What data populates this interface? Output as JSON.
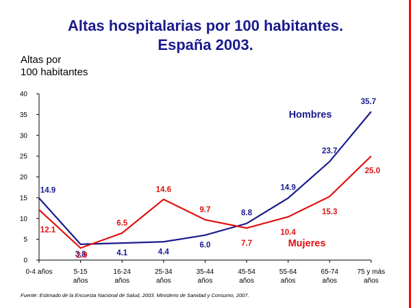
{
  "title_line1": "Altas hospitalarias por 100 habitantes.",
  "title_line2": "España 2003.",
  "ylabel_line1": "Altas por",
  "ylabel_line2": "100 habitantes",
  "source": "Fuente: Estimado de la Encuesta Nacional de Salud, 2003. Ministerio de Sanidad y Consumo, 2007.",
  "chart_data": {
    "type": "line",
    "categories": [
      [
        "0-4 años"
      ],
      [
        "5-15",
        "años"
      ],
      [
        "16-24",
        "años"
      ],
      [
        "25-34",
        "años"
      ],
      [
        "35-44",
        "años"
      ],
      [
        "45-54",
        "años"
      ],
      [
        "55-64",
        "años"
      ],
      [
        "65-74",
        "años"
      ],
      [
        "75 y más",
        "años"
      ]
    ],
    "ylim": [
      0,
      40
    ],
    "yticks": [
      0,
      5,
      10,
      15,
      20,
      25,
      30,
      35,
      40
    ],
    "grid": false,
    "series": [
      {
        "name": "Hombres",
        "color": "#1a1a8c",
        "values": [
          14.9,
          3.8,
          4.1,
          4.4,
          6.0,
          8.8,
          14.9,
          23.7,
          35.7
        ],
        "labels": [
          "14.9",
          "3.8",
          "4.1",
          "4.4",
          "6.0",
          "8.8",
          "14.9",
          "23.7",
          "35.7"
        ]
      },
      {
        "name": "Mujeres",
        "color": "#e01010",
        "values": [
          12.1,
          2.9,
          6.5,
          14.6,
          9.7,
          7.7,
          10.4,
          15.3,
          25.0
        ],
        "labels": [
          "12.1",
          "2.9",
          "6.5",
          "14.6",
          "9.7",
          "7.7",
          "10.4",
          "15.3",
          "25.0"
        ]
      }
    ]
  }
}
